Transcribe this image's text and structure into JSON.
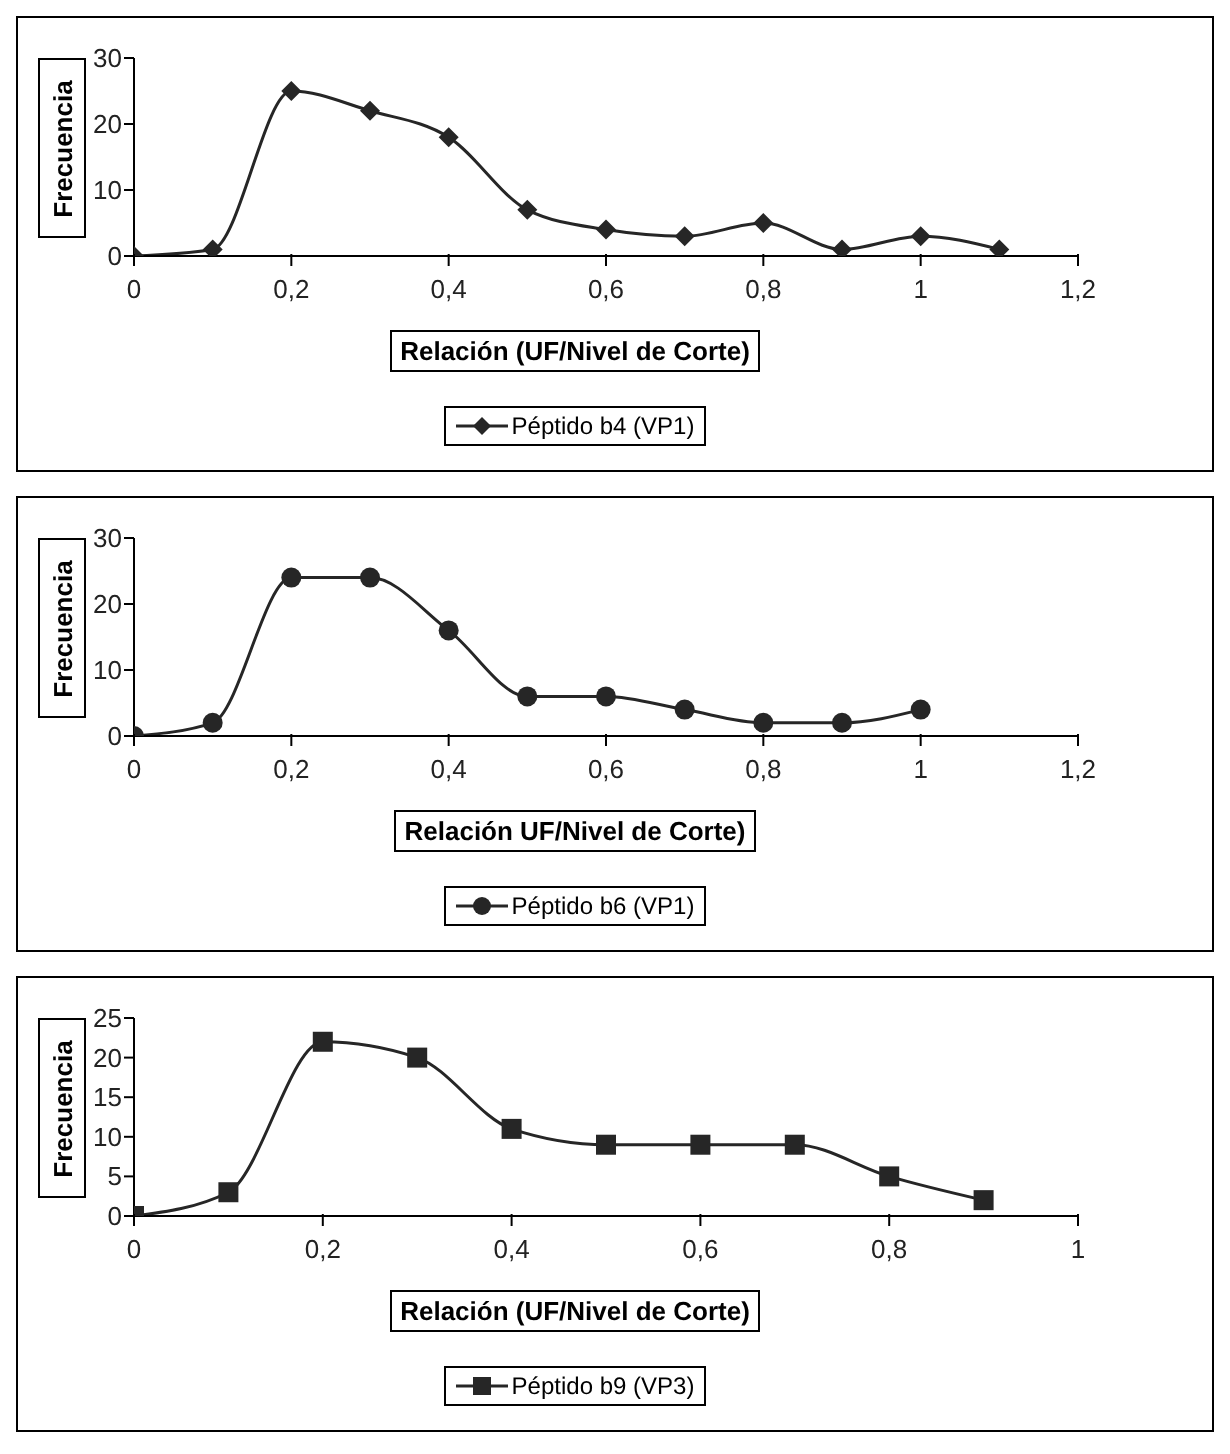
{
  "chart_data": [
    {
      "type": "line",
      "xlabel": "Relación (UF/Nivel de Corte)",
      "ylabel": "Frecuencia",
      "x": [
        0,
        0.1,
        0.2,
        0.3,
        0.4,
        0.5,
        0.6,
        0.7,
        0.8,
        0.9,
        1,
        1.1
      ],
      "series": [
        {
          "name": "Péptido b4 (VP1)",
          "color": "#262626",
          "values": [
            0,
            1,
            25,
            22,
            18,
            7,
            4,
            3,
            5,
            1,
            3,
            1
          ]
        }
      ],
      "xlim": [
        0,
        1.2
      ],
      "xticks": [
        {
          "value": 0,
          "label": "0"
        },
        {
          "value": 0.2,
          "label": "0,2"
        },
        {
          "value": 0.4,
          "label": "0,4"
        },
        {
          "value": 0.6,
          "label": "0,6"
        },
        {
          "value": 0.8,
          "label": "0,8"
        },
        {
          "value": 1,
          "label": "1"
        },
        {
          "value": 1.2,
          "label": "1,2"
        }
      ],
      "ylim": [
        0,
        30
      ],
      "yticks": [
        0,
        10,
        20,
        30
      ],
      "grid": false,
      "legend": "bottom",
      "marker": "diamond",
      "line_style": "solid"
    },
    {
      "type": "line",
      "xlabel": "Relación UF/Nivel de Corte)",
      "ylabel": "Frecuencia",
      "x": [
        0,
        0.1,
        0.2,
        0.3,
        0.4,
        0.5,
        0.6,
        0.7,
        0.8,
        0.9,
        1
      ],
      "series": [
        {
          "name": "Péptido b6 (VP1)",
          "color": "#262626",
          "values": [
            0,
            2,
            24,
            24,
            16,
            6,
            6,
            4,
            2,
            2,
            4
          ]
        }
      ],
      "xlim": [
        0,
        1.2
      ],
      "xticks": [
        {
          "value": 0,
          "label": "0"
        },
        {
          "value": 0.2,
          "label": "0,2"
        },
        {
          "value": 0.4,
          "label": "0,4"
        },
        {
          "value": 0.6,
          "label": "0,6"
        },
        {
          "value": 0.8,
          "label": "0,8"
        },
        {
          "value": 1,
          "label": "1"
        },
        {
          "value": 1.2,
          "label": "1,2"
        }
      ],
      "ylim": [
        0,
        30
      ],
      "yticks": [
        0,
        10,
        20,
        30
      ],
      "grid": false,
      "legend": "bottom",
      "marker": "circle",
      "line_style": "solid"
    },
    {
      "type": "line",
      "xlabel": "Relación (UF/Nivel de Corte)",
      "ylabel": "Frecuencia",
      "x": [
        0,
        0.1,
        0.2,
        0.3,
        0.4,
        0.5,
        0.6,
        0.7,
        0.8,
        0.9
      ],
      "series": [
        {
          "name": "Péptido b9 (VP3)",
          "color": "#262626",
          "values": [
            0,
            3,
            22,
            20,
            11,
            9,
            9,
            9,
            5,
            2
          ]
        }
      ],
      "xlim": [
        0,
        1
      ],
      "xticks": [
        {
          "value": 0,
          "label": "0"
        },
        {
          "value": 0.2,
          "label": "0,2"
        },
        {
          "value": 0.4,
          "label": "0,4"
        },
        {
          "value": 0.6,
          "label": "0,6"
        },
        {
          "value": 0.8,
          "label": "0,8"
        },
        {
          "value": 1,
          "label": "1"
        }
      ],
      "ylim": [
        0,
        25
      ],
      "yticks": [
        0,
        5,
        10,
        15,
        20,
        25
      ],
      "grid": false,
      "legend": "bottom",
      "marker": "square",
      "line_style": "solid"
    }
  ]
}
